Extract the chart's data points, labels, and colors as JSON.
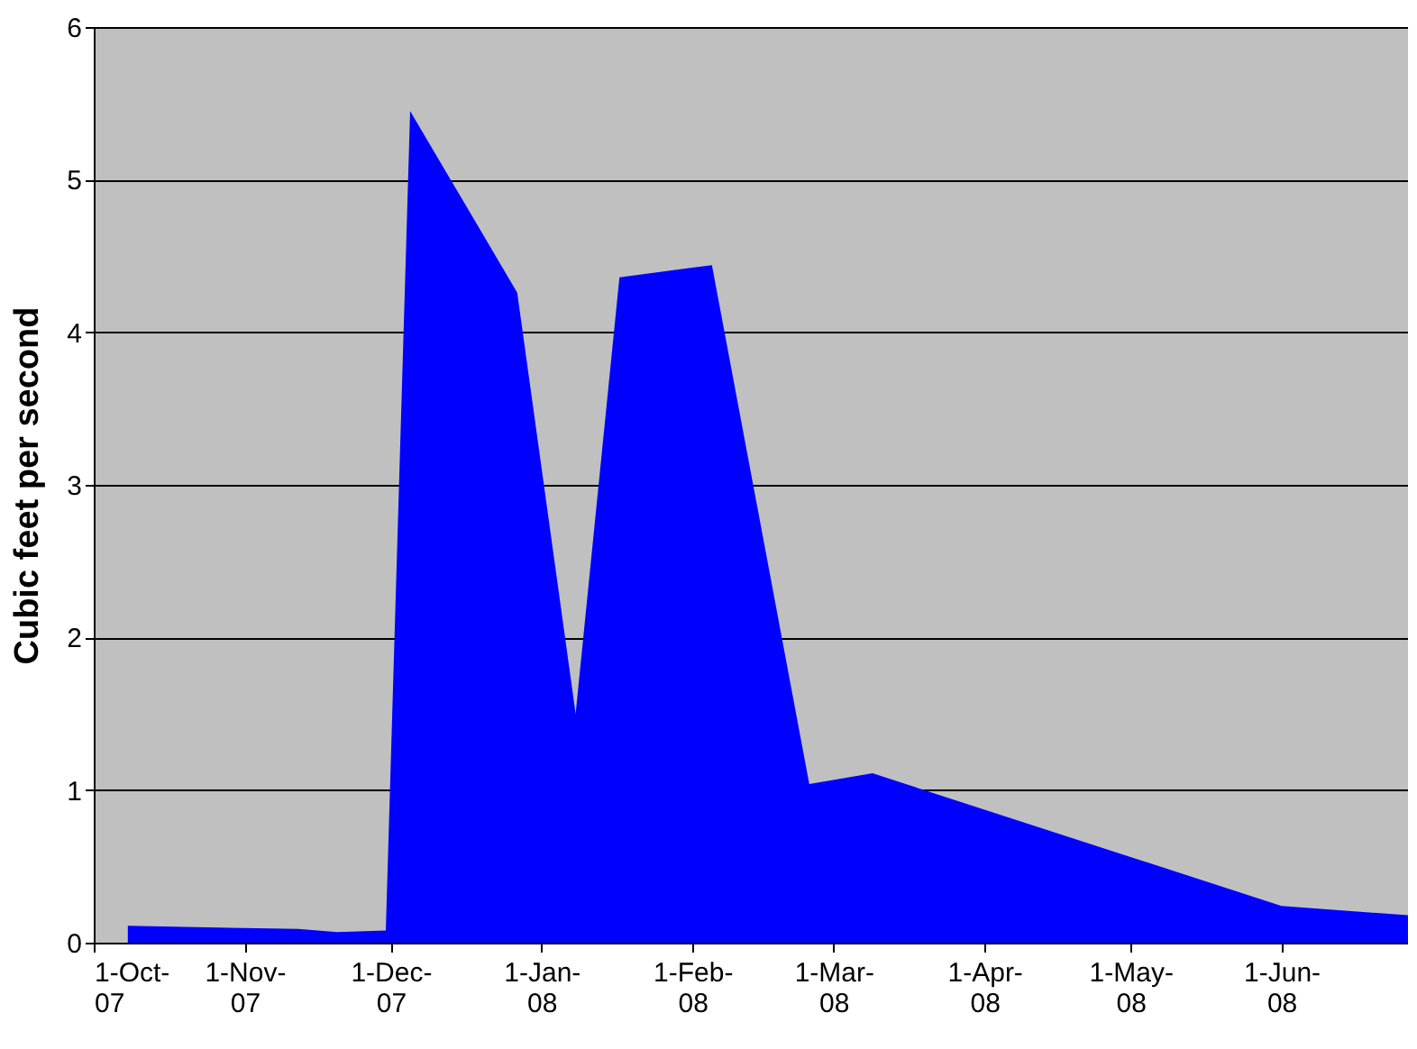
{
  "chart_data": {
    "type": "area",
    "ylabel": "Cubic feet per second",
    "x": [
      "2007-10-08",
      "2007-11-12",
      "2007-11-20",
      "2007-11-30",
      "2007-12-05",
      "2007-12-27",
      "2008-01-08",
      "2008-01-17",
      "2008-02-05",
      "2008-02-25",
      "2008-03-09",
      "2008-06-01",
      "2008-06-27"
    ],
    "series": [
      {
        "color": "#0000ff",
        "values": [
          0.11,
          0.09,
          0.07,
          0.08,
          5.45,
          4.26,
          1.5,
          4.36,
          4.44,
          1.04,
          1.11,
          0.24,
          0.18
        ]
      }
    ],
    "xlim": [
      "2007-10-01",
      "2008-06-27"
    ],
    "xticks": [
      {
        "value": "2007-10-01",
        "label": "1-Oct-07"
      },
      {
        "value": "2007-11-01",
        "label": "1-Nov-07"
      },
      {
        "value": "2007-12-01",
        "label": "1-Dec-07"
      },
      {
        "value": "2008-01-01",
        "label": "1-Jan-08"
      },
      {
        "value": "2008-02-01",
        "label": "1-Feb-08"
      },
      {
        "value": "2008-03-01",
        "label": "1-Mar-08"
      },
      {
        "value": "2008-04-01",
        "label": "1-Apr-08"
      },
      {
        "value": "2008-05-01",
        "label": "1-May-08"
      },
      {
        "value": "2008-06-01",
        "label": "1-Jun-08"
      }
    ],
    "ylim": [
      0,
      6
    ],
    "yticks": [
      0,
      1,
      2,
      3,
      4,
      5,
      6
    ],
    "grid": "y"
  }
}
